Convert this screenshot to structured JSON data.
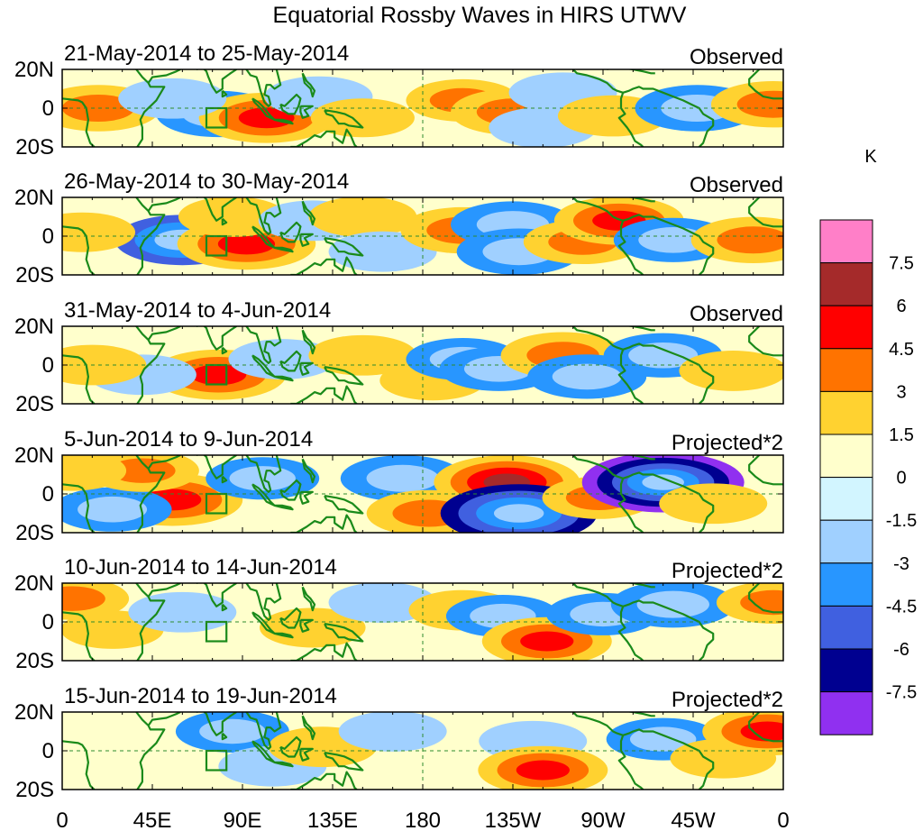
{
  "chart_data": {
    "type": "heatmap",
    "title": "Equatorial Rossby Waves in HIRS UTWV",
    "units": "K",
    "lon_ticks": [
      "0",
      "45E",
      "90E",
      "135E",
      "180",
      "135W",
      "90W",
      "45W",
      "0"
    ],
    "lat_ticks": [
      "20N",
      "0",
      "20S"
    ],
    "lon_range": [
      0,
      360
    ],
    "lat_range": [
      -20,
      20
    ],
    "colorbar": {
      "labels": [
        "7.5",
        "6",
        "4.5",
        "3",
        "1.5",
        "0",
        "-1.5",
        "-3",
        "-4.5",
        "-6",
        "-7.5"
      ],
      "colors": [
        "#ff7fc8",
        "#a52a2a",
        "#ff0000",
        "#ff7300",
        "#ffd230",
        "#ffffcc",
        "#d2f5ff",
        "#a0d0ff",
        "#2896ff",
        "#4060e0",
        "#000090",
        "#9030f0"
      ]
    },
    "panels": [
      {
        "period": "21-May-2014 to 25-May-2014",
        "label": "Observed",
        "blobs": [
          {
            "lon": 18,
            "lat": 0,
            "value": 3.5
          },
          {
            "lon": 78,
            "lat": -3,
            "value": -3.5
          },
          {
            "lon": 102,
            "lat": -5,
            "value": 4.5
          },
          {
            "lon": 55,
            "lat": 5,
            "value": -2
          },
          {
            "lon": 128,
            "lat": 6,
            "value": -2
          },
          {
            "lon": 150,
            "lat": -5,
            "value": 1.6
          },
          {
            "lon": 200,
            "lat": 4,
            "value": 2.5
          },
          {
            "lon": 225,
            "lat": -2,
            "value": 3.5
          },
          {
            "lon": 250,
            "lat": 8,
            "value": -2
          },
          {
            "lon": 240,
            "lat": -10,
            "value": -2
          },
          {
            "lon": 275,
            "lat": -4,
            "value": 2.2
          },
          {
            "lon": 317,
            "lat": 0,
            "value": -3.5
          },
          {
            "lon": 355,
            "lat": 2,
            "value": 3.5
          }
        ]
      },
      {
        "period": "26-May-2014 to 30-May-2014",
        "label": "Observed",
        "blobs": [
          {
            "lon": 60,
            "lat": -2,
            "value": -4.5
          },
          {
            "lon": 92,
            "lat": -4,
            "value": 4.8
          },
          {
            "lon": 85,
            "lat": 10,
            "value": 2
          },
          {
            "lon": 125,
            "lat": 8,
            "value": -2
          },
          {
            "lon": 150,
            "lat": 10,
            "value": 2
          },
          {
            "lon": 160,
            "lat": -8,
            "value": -2
          },
          {
            "lon": 200,
            "lat": 3,
            "value": 3.5
          },
          {
            "lon": 225,
            "lat": 6,
            "value": -3.5
          },
          {
            "lon": 228,
            "lat": -8,
            "value": -3.5
          },
          {
            "lon": 260,
            "lat": -3,
            "value": 3
          },
          {
            "lon": 278,
            "lat": 8,
            "value": 4
          },
          {
            "lon": 305,
            "lat": -2,
            "value": -3
          },
          {
            "lon": 345,
            "lat": -2,
            "value": 3.5
          },
          {
            "lon": 10,
            "lat": 2,
            "value": 1.8
          }
        ]
      },
      {
        "period": "31-May-2014 to 4-Jun-2014",
        "label": "Observed",
        "blobs": [
          {
            "lon": 78,
            "lat": -5,
            "value": 4.5
          },
          {
            "lon": 40,
            "lat": -5,
            "value": -2
          },
          {
            "lon": 110,
            "lat": 3,
            "value": -2
          },
          {
            "lon": 150,
            "lat": 5,
            "value": 2
          },
          {
            "lon": 185,
            "lat": -8,
            "value": 1.8
          },
          {
            "lon": 200,
            "lat": 3,
            "value": -2.5
          },
          {
            "lon": 218,
            "lat": -2,
            "value": -3
          },
          {
            "lon": 250,
            "lat": 5,
            "value": 3.5
          },
          {
            "lon": 262,
            "lat": -6,
            "value": -3
          },
          {
            "lon": 300,
            "lat": 5,
            "value": -3
          },
          {
            "lon": 335,
            "lat": -3,
            "value": 2
          },
          {
            "lon": 15,
            "lat": 0,
            "value": 2
          }
        ]
      },
      {
        "period": "5-Jun-2014 to 9-Jun-2014",
        "label": "Projected*2",
        "blobs": [
          {
            "lon": 55,
            "lat": -3,
            "value": 5
          },
          {
            "lon": 25,
            "lat": -8,
            "value": -3
          },
          {
            "lon": 40,
            "lat": 12,
            "value": 2.5
          },
          {
            "lon": 100,
            "lat": 8,
            "value": -2.5
          },
          {
            "lon": 170,
            "lat": 8,
            "value": -3.5
          },
          {
            "lon": 183,
            "lat": -10,
            "value": 3.5
          },
          {
            "lon": 222,
            "lat": 6,
            "value": 5.5
          },
          {
            "lon": 228,
            "lat": -10,
            "value": -6.5
          },
          {
            "lon": 268,
            "lat": -2,
            "value": 2.5
          },
          {
            "lon": 300,
            "lat": 6,
            "value": -7
          },
          {
            "lon": 325,
            "lat": -5,
            "value": 2
          },
          {
            "lon": 5,
            "lat": 12,
            "value": 2
          }
        ]
      },
      {
        "period": "10-Jun-2014 to 14-Jun-2014",
        "label": "Projected*2",
        "blobs": [
          {
            "lon": 5,
            "lat": 12,
            "value": 2.5
          },
          {
            "lon": 25,
            "lat": -4,
            "value": 1.5
          },
          {
            "lon": 60,
            "lat": 5,
            "value": -2
          },
          {
            "lon": 125,
            "lat": -3,
            "value": 1.8
          },
          {
            "lon": 160,
            "lat": 10,
            "value": -2
          },
          {
            "lon": 200,
            "lat": 6,
            "value": 2
          },
          {
            "lon": 220,
            "lat": 3,
            "value": -2.5
          },
          {
            "lon": 242,
            "lat": -10,
            "value": 4
          },
          {
            "lon": 270,
            "lat": 4,
            "value": -2.5
          },
          {
            "lon": 305,
            "lat": 9,
            "value": -3.5
          },
          {
            "lon": 355,
            "lat": 10,
            "value": 2.5
          }
        ]
      },
      {
        "period": "15-Jun-2014 to 19-Jun-2014",
        "label": "Projected*2",
        "blobs": [
          {
            "lon": 85,
            "lat": 10,
            "value": -2.5
          },
          {
            "lon": 105,
            "lat": -8,
            "value": -2
          },
          {
            "lon": 130,
            "lat": 2,
            "value": 2
          },
          {
            "lon": 165,
            "lat": 10,
            "value": -2
          },
          {
            "lon": 235,
            "lat": 5,
            "value": -2
          },
          {
            "lon": 240,
            "lat": -10,
            "value": 4
          },
          {
            "lon": 300,
            "lat": 6,
            "value": -2.5
          },
          {
            "lon": 330,
            "lat": -4,
            "value": 1.8
          },
          {
            "lon": 352,
            "lat": 10,
            "value": 4
          }
        ]
      }
    ]
  }
}
